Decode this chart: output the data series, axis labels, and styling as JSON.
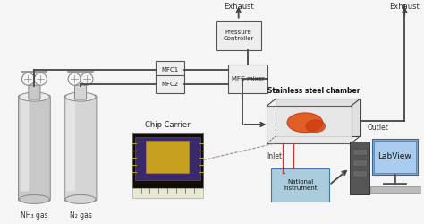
{
  "bg_color": "#f5f5f5",
  "line_color": "#444444",
  "box_color": "#eeeeee",
  "box_edge": "#555555",
  "labels": {
    "nh3": "NH₃ gas",
    "n2": "N₂ gas",
    "mfc1": "MFC1",
    "mfc2": "MFC2",
    "mfc_mixer": "MFC mixer",
    "pressure": "Pressure\nController",
    "exhaust1": "Exhaust",
    "exhaust2": "Exhaust",
    "chamber": "Stainless steel chamber",
    "inlet": "Inlet",
    "outlet": "Outlet",
    "chip": "Chip Carrier",
    "national": "National\nInstrument",
    "labview": "LabView"
  },
  "cylinder_color_1": "#c8c8c8",
  "cylinder_color_2": "#d5d5d5",
  "cylinder_highlight": "#ebebeb",
  "sensor_color": "#e05010",
  "national_color": "#aaccdd",
  "labview_color": "#aaccee",
  "computer_color": "#666666",
  "wire_color": "#cc3333"
}
